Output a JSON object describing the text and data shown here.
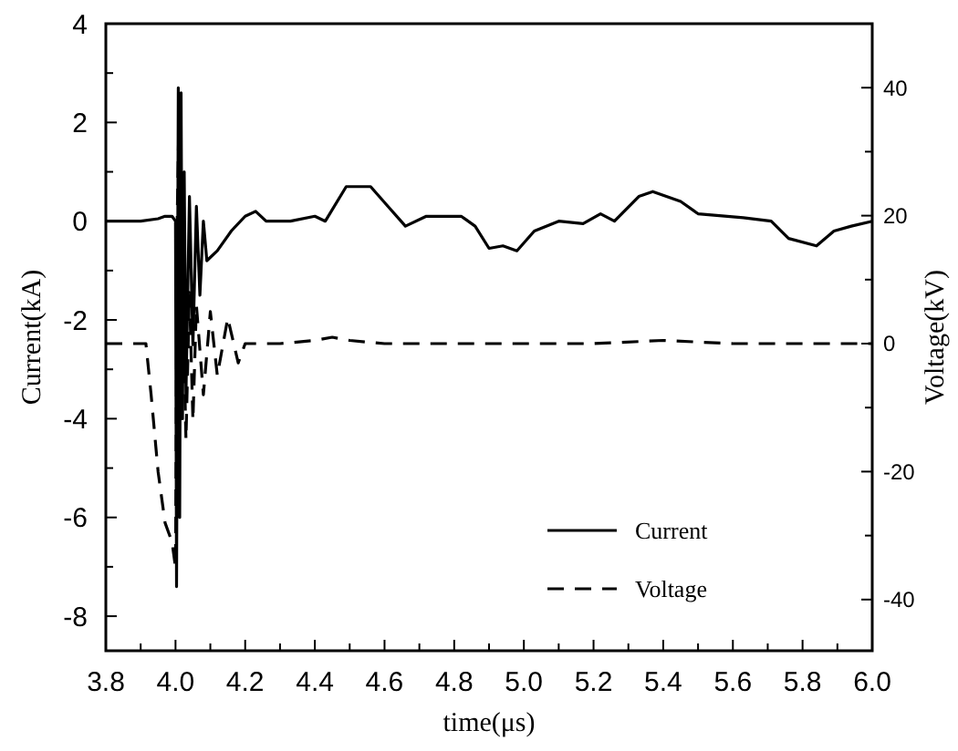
{
  "chart_data": {
    "type": "line",
    "xlabel": "time(μs)",
    "ylabel": "Current(kA)",
    "y2label": "Voltage(kV)",
    "xlim": [
      3.8,
      6.0
    ],
    "xticks": [
      {
        "value": 3.8,
        "label": "3.8"
      },
      {
        "value": 3.9,
        "label": null
      },
      {
        "value": 4.0,
        "label": "4.0"
      },
      {
        "value": 4.1,
        "label": null
      },
      {
        "value": 4.2,
        "label": "4.2"
      },
      {
        "value": 4.3,
        "label": null
      },
      {
        "value": 4.4,
        "label": "4.4"
      },
      {
        "value": 4.5,
        "label": null
      },
      {
        "value": 4.6,
        "label": "4.6"
      },
      {
        "value": 4.7,
        "label": null
      },
      {
        "value": 4.8,
        "label": "4.8"
      },
      {
        "value": 4.9,
        "label": null
      },
      {
        "value": 5.0,
        "label": "5.0"
      },
      {
        "value": 5.1,
        "label": null
      },
      {
        "value": 5.2,
        "label": "5.2"
      },
      {
        "value": 5.3,
        "label": null
      },
      {
        "value": 5.4,
        "label": "5.4"
      },
      {
        "value": 5.5,
        "label": null
      },
      {
        "value": 5.6,
        "label": "5.6"
      },
      {
        "value": 5.7,
        "label": null
      },
      {
        "value": 5.8,
        "label": "5.8"
      },
      {
        "value": 5.9,
        "label": null
      },
      {
        "value": 6.0,
        "label": "6.0"
      }
    ],
    "ylim": [
      -8.7,
      4
    ],
    "yticks": [
      -8,
      {
        "value": -7,
        "label": null
      },
      -6,
      {
        "value": -5,
        "label": null
      },
      -4,
      {
        "value": -3,
        "label": null
      },
      -2,
      {
        "value": -1,
        "label": null
      },
      0,
      {
        "value": 1,
        "label": null
      },
      2,
      {
        "value": 3,
        "label": null
      },
      4
    ],
    "y2lim": [
      -48,
      50
    ],
    "y2ticks": [
      -40,
      {
        "value": -30,
        "label": null
      },
      -20,
      {
        "value": -10,
        "label": null
      },
      0,
      {
        "value": 10,
        "label": null
      },
      20,
      {
        "value": 30,
        "label": null
      },
      40
    ],
    "grid": false,
    "legend": "bottom right",
    "series": [
      {
        "name": "Current",
        "color": "#000000",
        "line_style": "solid",
        "x": [
          3.8,
          3.85,
          3.9,
          3.95,
          3.97,
          3.99,
          4.0,
          4.003,
          4.008,
          4.012,
          4.016,
          4.02,
          4.025,
          4.03,
          4.04,
          4.05,
          4.06,
          4.07,
          4.08,
          4.09,
          4.12,
          4.16,
          4.2,
          4.23,
          4.26,
          4.33,
          4.4,
          4.43,
          4.49,
          4.56,
          4.61,
          4.66,
          4.72,
          4.82,
          4.86,
          4.9,
          4.94,
          4.98,
          5.03,
          5.1,
          5.17,
          5.22,
          5.26,
          5.33,
          5.37,
          5.45,
          5.5,
          5.63,
          5.71,
          5.76,
          5.84,
          5.89,
          5.94,
          6.0
        ],
        "values": [
          0,
          0,
          0,
          0.05,
          0.1,
          0.1,
          0,
          -7.4,
          2.7,
          -6,
          2.6,
          -4,
          1,
          -3.5,
          0.5,
          -2.5,
          0.3,
          -1.5,
          0,
          -0.8,
          -0.6,
          -0.2,
          0.1,
          0.2,
          0,
          0,
          0.1,
          0,
          0.7,
          0.7,
          0.3,
          -0.1,
          0.1,
          0.1,
          -0.1,
          -0.55,
          -0.5,
          -0.6,
          -0.2,
          0,
          -0.05,
          0.15,
          0,
          0.5,
          0.6,
          0.4,
          0.15,
          0.07,
          0,
          -0.35,
          -0.5,
          -0.2,
          -0.1,
          0
        ]
      },
      {
        "name": "Voltage",
        "color": "#000000",
        "line_style": "dashed",
        "axis": "y2",
        "x": [
          3.8,
          3.85,
          3.9,
          3.915,
          3.93,
          3.95,
          3.97,
          3.99,
          4.0,
          4.005,
          4.01,
          4.015,
          4.02,
          4.03,
          4.04,
          4.05,
          4.06,
          4.08,
          4.1,
          4.12,
          4.15,
          4.18,
          4.2,
          4.3,
          4.4,
          4.45,
          4.5,
          4.6,
          4.8,
          5.0,
          5.2,
          5.4,
          5.6,
          5.8,
          6.0
        ],
        "values": [
          0,
          0,
          0,
          0,
          -8,
          -20,
          -28,
          -31,
          -35,
          20,
          36,
          -10,
          10,
          -15,
          8,
          -12,
          6,
          -8,
          5,
          -5,
          4,
          -3,
          0,
          0,
          0.5,
          1,
          0.5,
          0,
          0,
          0,
          0,
          0.5,
          0,
          0,
          0
        ]
      }
    ]
  }
}
